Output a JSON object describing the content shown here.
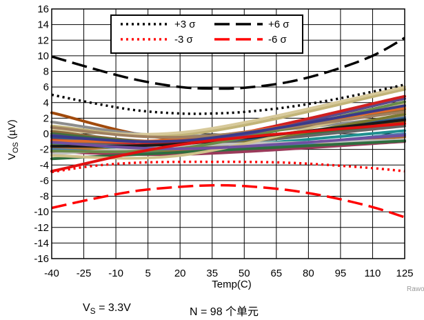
{
  "chart_data": {
    "type": "line",
    "xlabel": "Temp(C)",
    "ylabel": "V",
    "ylabel_sub": "OS",
    "ylabel_unit": " (µV)",
    "x_ticks": [
      -40,
      -25,
      -10,
      5,
      20,
      35,
      50,
      65,
      80,
      95,
      110,
      125
    ],
    "y_ticks": [
      -16,
      -14,
      -12,
      -10,
      -8,
      -6,
      -4,
      -2,
      0,
      2,
      4,
      6,
      8,
      10,
      12,
      14,
      16
    ],
    "xlim": [
      -40,
      125
    ],
    "ylim": [
      -16,
      16
    ],
    "grid": true,
    "legend_position": "top-right",
    "legend": [
      {
        "label": "+3 σ",
        "color": "#000000",
        "style": "dotted"
      },
      {
        "label": "+6 σ",
        "color": "#000000",
        "style": "long-dash"
      },
      {
        "label": "-3 σ",
        "color": "#ff0000",
        "style": "dotted"
      },
      {
        "label": "-6 σ",
        "color": "#ff0000",
        "style": "long-dash"
      }
    ],
    "sigma_series": [
      {
        "legend_index": 1,
        "color": "#000000",
        "style": "long-dash",
        "x": [
          -40,
          -20,
          0,
          20,
          35,
          50,
          70,
          90,
          110,
          125
        ],
        "y": [
          9.9,
          8.3,
          6.9,
          6.0,
          5.8,
          5.9,
          6.6,
          8.0,
          10.0,
          12.3
        ]
      },
      {
        "legend_index": 0,
        "color": "#000000",
        "style": "dotted",
        "x": [
          -40,
          -20,
          0,
          20,
          35,
          50,
          70,
          90,
          110,
          125
        ],
        "y": [
          5.0,
          3.9,
          3.0,
          2.6,
          2.6,
          2.8,
          3.4,
          4.3,
          5.4,
          6.3
        ]
      },
      {
        "legend_index": 2,
        "color": "#ff0000",
        "style": "dotted",
        "x": [
          -40,
          -20,
          0,
          20,
          35,
          50,
          70,
          90,
          110,
          125
        ],
        "y": [
          -4.9,
          -4.1,
          -3.7,
          -3.6,
          -3.6,
          -3.6,
          -3.7,
          -4.0,
          -4.4,
          -4.8
        ]
      },
      {
        "legend_index": 3,
        "color": "#ff0000",
        "style": "long-dash",
        "x": [
          -40,
          -20,
          0,
          20,
          35,
          50,
          70,
          90,
          110,
          125
        ],
        "y": [
          -9.5,
          -8.3,
          -7.3,
          -6.8,
          -6.6,
          -6.7,
          -7.2,
          -8.1,
          -9.4,
          -10.7
        ]
      }
    ],
    "unit_series": [
      {
        "color": "#a14a0c",
        "x": [
          -40,
          25,
          125
        ],
        "y": [
          2.7,
          -0.8,
          1.6
        ]
      },
      {
        "color": "#8c8c8c",
        "x": [
          -40,
          25,
          125
        ],
        "y": [
          1.5,
          -0.3,
          2.2
        ]
      },
      {
        "color": "#c2b478",
        "x": [
          -40,
          25,
          125
        ],
        "y": [
          1.0,
          0.0,
          5.7
        ]
      },
      {
        "color": "#d7c99a",
        "x": [
          -40,
          25,
          125
        ],
        "y": [
          0.5,
          0.3,
          6.0
        ]
      },
      {
        "color": "#8a6a3c",
        "x": [
          -40,
          25,
          125
        ],
        "y": [
          0.3,
          -0.9,
          3.1
        ]
      },
      {
        "color": "#3f6f3f",
        "x": [
          -40,
          25,
          125
        ],
        "y": [
          0.0,
          -1.1,
          1.3
        ]
      },
      {
        "color": "#5a4a8a",
        "x": [
          -40,
          25,
          125
        ],
        "y": [
          -0.2,
          -1.2,
          4.5
        ]
      },
      {
        "color": "#2e5e8e",
        "x": [
          -40,
          25,
          125
        ],
        "y": [
          -0.5,
          -1.4,
          2.0
        ]
      },
      {
        "color": "#d02020",
        "x": [
          -40,
          25,
          125
        ],
        "y": [
          -0.8,
          -1.0,
          4.8
        ]
      },
      {
        "color": "#666666",
        "x": [
          -40,
          25,
          125
        ],
        "y": [
          -1.0,
          -1.5,
          1.0
        ]
      },
      {
        "color": "#1f8f8f",
        "x": [
          -40,
          25,
          125
        ],
        "y": [
          -1.3,
          -1.8,
          0.4
        ]
      },
      {
        "color": "#7a7a30",
        "x": [
          -40,
          25,
          125
        ],
        "y": [
          -1.5,
          -2.0,
          2.5
        ]
      },
      {
        "color": "#b07030",
        "x": [
          -40,
          25,
          125
        ],
        "y": [
          -1.8,
          -2.1,
          -0.4
        ]
      },
      {
        "color": "#4a7ab0",
        "x": [
          -40,
          25,
          125
        ],
        "y": [
          -2.0,
          -2.4,
          0.0
        ]
      },
      {
        "color": "#9a3a5a",
        "x": [
          -40,
          25,
          125
        ],
        "y": [
          -2.3,
          -2.6,
          -1.0
        ]
      },
      {
        "color": "#c0c0c0",
        "x": [
          -40,
          25,
          125
        ],
        "y": [
          -2.6,
          -1.5,
          -0.8
        ]
      },
      {
        "color": "#2e6e3e",
        "x": [
          -40,
          25,
          125
        ],
        "y": [
          -3.2,
          -2.3,
          -0.9
        ]
      },
      {
        "color": "#cfc08a",
        "x": [
          -40,
          25,
          125
        ],
        "y": [
          -2.8,
          -2.6,
          3.8
        ]
      },
      {
        "color": "#1a1a1a",
        "x": [
          -40,
          25,
          125
        ],
        "y": [
          -1.6,
          -1.2,
          1.8
        ]
      },
      {
        "color": "#e06a2a",
        "x": [
          -40,
          25,
          125
        ],
        "y": [
          -0.9,
          -0.6,
          3.3
        ]
      },
      {
        "color": "#6a8a4a",
        "x": [
          -40,
          25,
          125
        ],
        "y": [
          -2.2,
          -1.7,
          4.1
        ]
      },
      {
        "color": "#7050a0",
        "x": [
          -40,
          25,
          125
        ],
        "y": [
          -1.1,
          -1.9,
          -0.2
        ]
      },
      {
        "color": "#a08060",
        "x": [
          -40,
          25,
          125
        ],
        "y": [
          0.8,
          -0.4,
          2.8
        ]
      },
      {
        "color": "#3a3a8a",
        "x": [
          -40,
          25,
          125
        ],
        "y": [
          -0.3,
          -0.8,
          3.6
        ]
      },
      {
        "color": "#e01010",
        "x": [
          -40,
          25,
          125
        ],
        "y": [
          -4.8,
          -1.2,
          1.3
        ]
      }
    ]
  },
  "footnote": {
    "vs_label": "V",
    "vs_sub": "S",
    "vs_value": " = 3.3V",
    "n_label": "N = 98 个单元"
  },
  "watermark": "Rawo"
}
